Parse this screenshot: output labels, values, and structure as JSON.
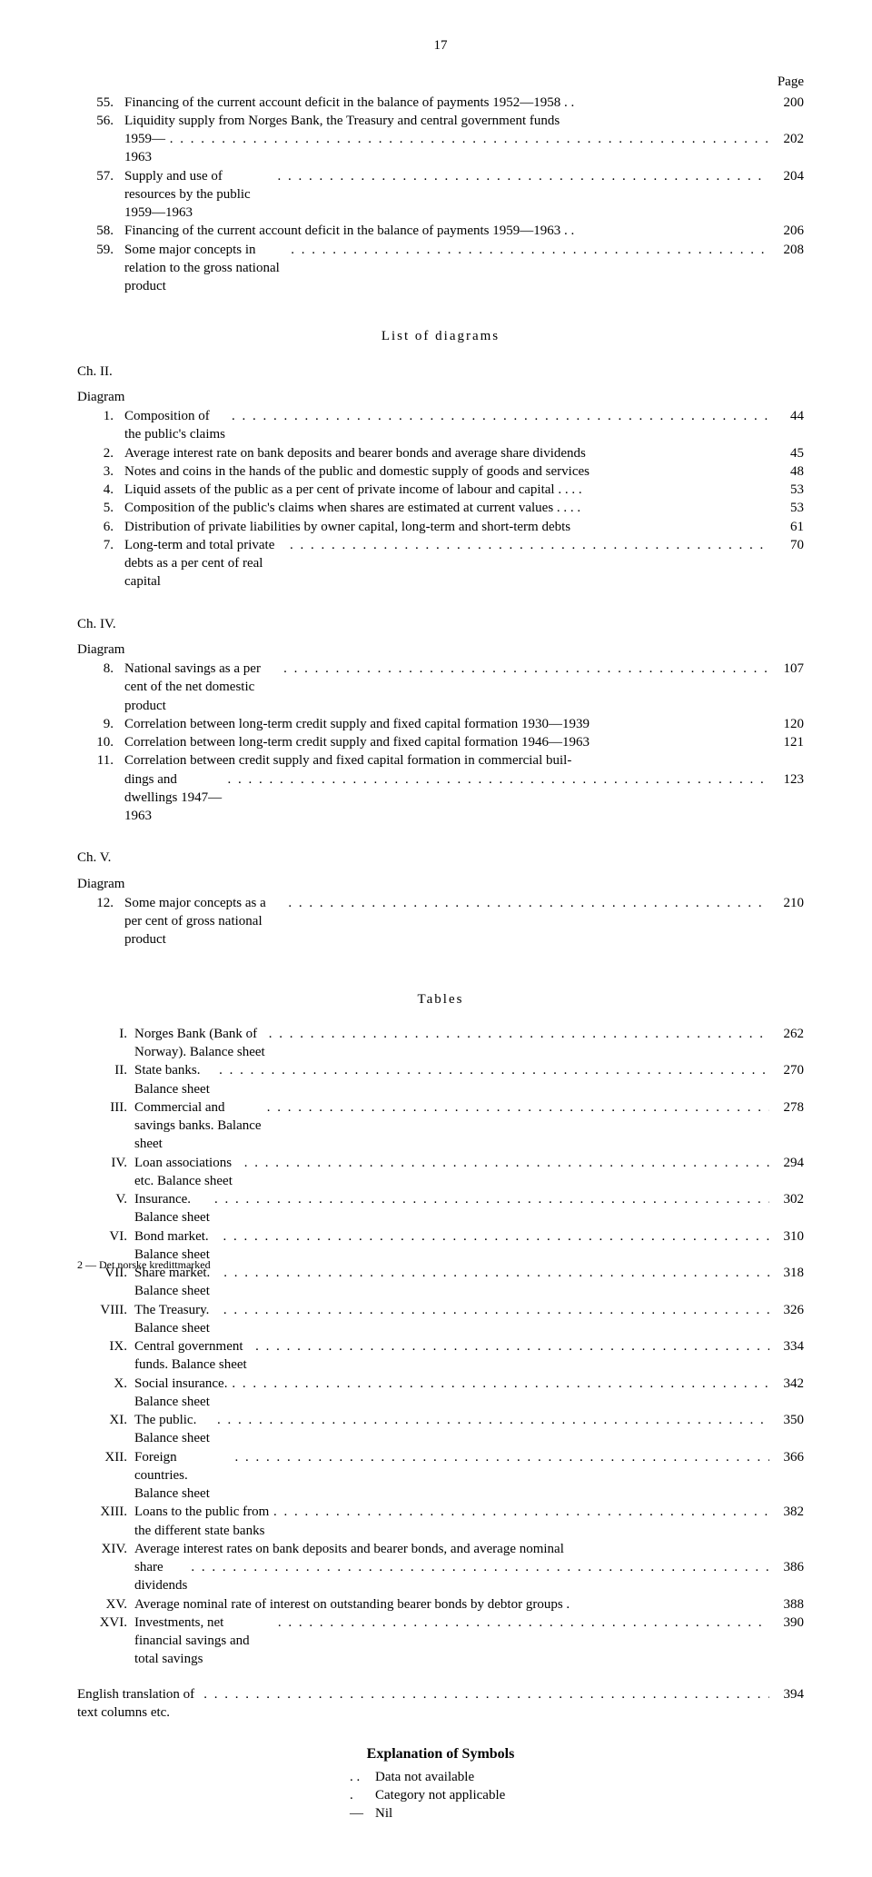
{
  "page_number": "17",
  "page_header": "Page",
  "top_entries": [
    {
      "n": "55.",
      "text": "Financing of the current account deficit in the balance of payments 1952—1958 . .",
      "page": "200",
      "nodots": true
    },
    {
      "n": "56.",
      "text": "Liquidity supply from Norges Bank, the Treasury and central government funds",
      "cont": "1959—1963",
      "page": "202"
    },
    {
      "n": "57.",
      "text": "Supply and use of resources by the public 1959—1963",
      "page": "204"
    },
    {
      "n": "58.",
      "text": "Financing of the current account deficit in the balance of payments 1959—1963 . .",
      "page": "206",
      "nodots": true
    },
    {
      "n": "59.",
      "text": "Some major concepts in relation to the gross national product",
      "page": "208"
    }
  ],
  "diagrams_title": "List of diagrams",
  "ch2_label": "Ch. II.",
  "diagram_label": "Diagram",
  "ch2": [
    {
      "n": "1.",
      "text": "Composition of the public's claims",
      "page": "44"
    },
    {
      "n": "2.",
      "text": "Average interest rate on bank deposits and bearer bonds and average share dividends",
      "page": "45",
      "nodots": true
    },
    {
      "n": "3.",
      "text": "Notes and coins in the hands of the public and domestic supply of goods and services",
      "page": "48",
      "nodots": true
    },
    {
      "n": "4.",
      "text": "Liquid assets of the public as a per cent of private income of labour and capital . . . .",
      "page": "53",
      "nodots": true
    },
    {
      "n": "5.",
      "text": "Composition of the public's claims when shares are estimated at current values . . . .",
      "page": "53",
      "nodots": true
    },
    {
      "n": "6.",
      "text": "Distribution of private liabilities by owner capital, long-term and short-term debts",
      "page": "61",
      "nodots": true
    },
    {
      "n": "7.",
      "text": "Long-term and total private debts as a per cent of real capital",
      "page": "70"
    }
  ],
  "ch4_label": "Ch. IV.",
  "ch4": [
    {
      "n": "8.",
      "text": "National savings as a per cent of the net domestic product",
      "page": "107"
    },
    {
      "n": "9.",
      "text": "Correlation between long-term credit supply and fixed capital formation 1930—1939",
      "page": "120",
      "nodots": true
    },
    {
      "n": "10.",
      "text": "Correlation between long-term credit supply and fixed capital formation 1946—1963",
      "page": "121",
      "nodots": true
    },
    {
      "n": "11.",
      "text": "Correlation between credit supply and fixed capital formation in commercial buil-",
      "cont": "dings and dwellings 1947—1963",
      "page": "123"
    }
  ],
  "ch5_label": "Ch. V.",
  "ch5": [
    {
      "n": "12.",
      "text": "Some major concepts as a per cent of gross national product",
      "page": "210"
    }
  ],
  "tables_title": "Tables",
  "tables": [
    {
      "n": "I.",
      "text": "Norges Bank (Bank of Norway). Balance sheet",
      "page": "262"
    },
    {
      "n": "II.",
      "text": "State banks. Balance sheet",
      "page": "270"
    },
    {
      "n": "III.",
      "text": "Commercial and savings banks. Balance sheet",
      "page": "278"
    },
    {
      "n": "IV.",
      "text": "Loan associations etc. Balance sheet",
      "page": "294"
    },
    {
      "n": "V.",
      "text": "Insurance. Balance sheet",
      "page": "302"
    },
    {
      "n": "VI.",
      "text": "Bond market. Balance sheet",
      "page": "310"
    },
    {
      "n": "VII.",
      "text": "Share market. Balance sheet",
      "page": "318"
    },
    {
      "n": "VIII.",
      "text": "The Treasury. Balance sheet",
      "page": "326"
    },
    {
      "n": "IX.",
      "text": "Central government funds. Balance sheet",
      "page": "334"
    },
    {
      "n": "X.",
      "text": "Social insurance. Balance sheet",
      "page": "342"
    },
    {
      "n": "XI.",
      "text": "The public. Balance sheet",
      "page": "350"
    },
    {
      "n": "XII.",
      "text": "Foreign countries. Balance sheet",
      "page": "366"
    },
    {
      "n": "XIII.",
      "text": "Loans to the public from the different state banks",
      "page": "382"
    },
    {
      "n": "XIV.",
      "text": "Average interest rates on bank deposits and bearer bonds, and average nominal",
      "cont": "share dividends",
      "page": "386"
    },
    {
      "n": "XV.",
      "text": "Average nominal rate of interest on outstanding bearer bonds by debtor groups .",
      "page": "388",
      "nodots": true
    },
    {
      "n": "XVI.",
      "text": "Investments, net financial savings and total savings",
      "page": "390"
    }
  ],
  "english_trans": {
    "text": "English translation of text columns etc.",
    "page": "394"
  },
  "symbols_title": "Explanation of Symbols",
  "symbols": [
    {
      "k": ". .",
      "v": "Data not available"
    },
    {
      "k": ".",
      "v": "Category not applicable"
    },
    {
      "k": "—",
      "v": "Nil"
    }
  ],
  "footer": "2 — Det norske kredittmarked"
}
